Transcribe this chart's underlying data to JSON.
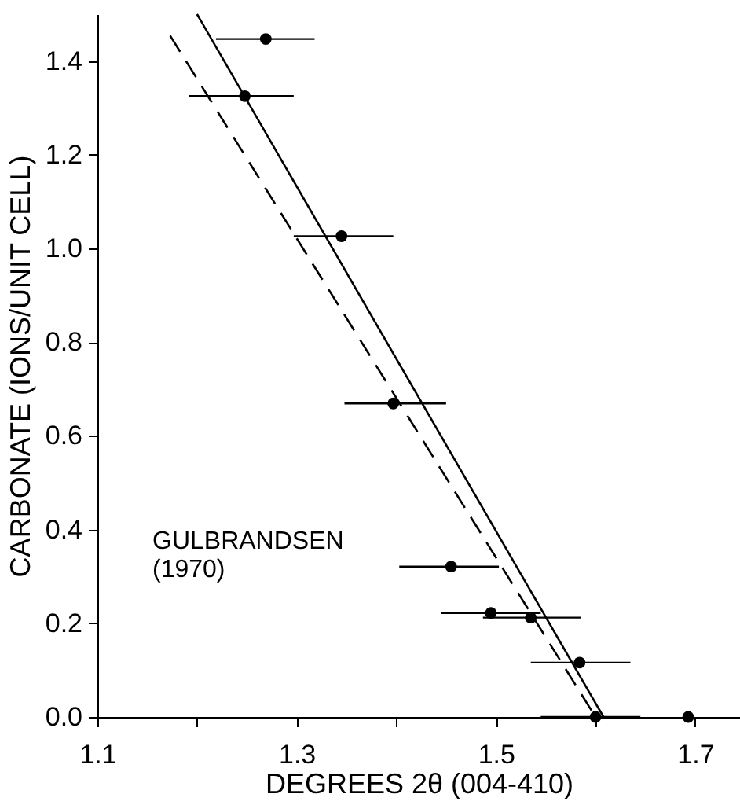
{
  "chart_data": {
    "type": "scatter",
    "xlabel": "DEGREES 2θ (004-410)",
    "ylabel": "CARBONATE (IONS/UNIT CELL)",
    "xlim": [
      1.1,
      1.745
    ],
    "ylim": [
      0,
      1.5
    ],
    "xticks": [
      1.1,
      {
        "value": 1.2,
        "label": null
      },
      1.3,
      {
        "value": 1.4,
        "label": null
      },
      1.5,
      {
        "value": 1.6,
        "label": null
      },
      1.7
    ],
    "yticks": [
      {
        "value": 0,
        "label": "0.0"
      },
      0.2,
      0.4,
      0.6,
      0.8,
      {
        "value": 1,
        "label": "1.0"
      },
      1.2,
      1.4
    ],
    "grid": false,
    "marker": "circle",
    "series": [
      {
        "type": "scatter",
        "color": "#000000",
        "x": [
          1.269,
          1.248,
          1.345,
          1.397,
          1.455,
          1.495,
          1.535,
          1.584,
          1.6,
          1.693
        ],
        "values": [
          1.447,
          1.325,
          1.026,
          0.669,
          0.321,
          0.222,
          0.212,
          0.116,
          0.0,
          0.0
        ],
        "xerrors": [
          [
            1.219,
            1.318
          ],
          [
            1.192,
            1.297
          ],
          [
            1.297,
            1.397
          ],
          [
            1.348,
            1.45
          ],
          [
            1.403,
            1.503
          ],
          [
            1.445,
            1.545
          ],
          [
            1.487,
            1.585
          ],
          [
            1.535,
            1.635
          ],
          [
            1.545,
            1.645
          ],
          null
        ]
      },
      {
        "type": "line",
        "color": "#000000",
        "line_style": "solid",
        "marker": "none",
        "x": [
          1.2,
          1.608
        ],
        "values": [
          1.5,
          0.0
        ]
      },
      {
        "type": "line",
        "color": "#000000",
        "line_style": "dashed",
        "marker": "none",
        "x": [
          1.173,
          1.6
        ],
        "values": [
          1.454,
          0.0
        ]
      }
    ],
    "annotations": [
      "GULBRANDSEN (1970)"
    ]
  }
}
